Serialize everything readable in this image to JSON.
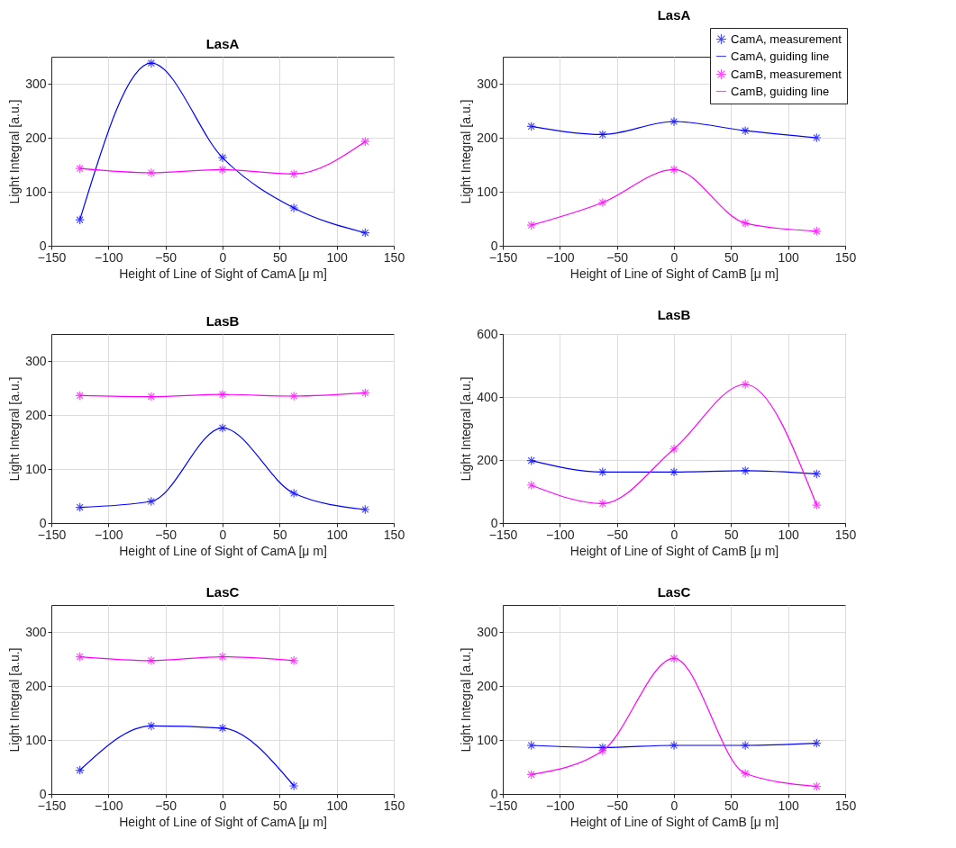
{
  "chart_data": [
    {
      "type": "line",
      "title": "LasA",
      "xlabel": "Height of Line of Sight of CamA [μ m]",
      "ylabel": "Light Integral [a.u.]",
      "x": [
        -125,
        -62.5,
        0,
        62.5,
        125
      ],
      "xlim": [
        -150,
        150
      ],
      "xticks": [
        -150,
        -100,
        -50,
        0,
        50,
        100,
        150
      ],
      "ylim": [
        0,
        350
      ],
      "yticks": [
        0,
        100,
        200,
        300
      ],
      "grid": true,
      "series": [
        {
          "type": "scatter",
          "marker": "cross",
          "color": "#0000ff",
          "values": [
            48,
            338,
            163,
            70,
            24
          ]
        },
        {
          "color": "#0000ff",
          "values": [
            48,
            338,
            163,
            70,
            24
          ]
        },
        {
          "type": "scatter",
          "marker": "cross",
          "color": "#ff00ff",
          "values": [
            143,
            135,
            141,
            133,
            193
          ]
        },
        {
          "color": "#ff00ff",
          "values": [
            143,
            135,
            141,
            133,
            193
          ]
        }
      ]
    },
    {
      "type": "line",
      "title": "LasA",
      "xlabel": "Height of Line of Sight of CamB [μ m]",
      "ylabel": "Light Integral [a.u.]",
      "x": [
        -125,
        -62.5,
        0,
        62.5,
        125
      ],
      "xlim": [
        -150,
        150
      ],
      "xticks": [
        -150,
        -100,
        -50,
        0,
        50,
        100,
        150
      ],
      "ylim": [
        0,
        350
      ],
      "yticks": [
        0,
        100,
        200,
        300
      ],
      "grid": true,
      "legend": "top right",
      "series": [
        {
          "type": "scatter",
          "marker": "cross",
          "name": "CamA, measurement",
          "color": "#0000ff",
          "values": [
            221,
            206,
            230,
            213,
            200
          ]
        },
        {
          "name": "CamA, guiding line",
          "color": "#0000ff",
          "values": [
            221,
            206,
            230,
            213,
            200
          ]
        },
        {
          "type": "scatter",
          "marker": "cross",
          "name": "CamB, measurement",
          "color": "#ff00ff",
          "values": [
            38,
            80,
            141,
            42,
            27
          ]
        },
        {
          "name": "CamB, guiding line",
          "color": "#ff00ff",
          "values": [
            38,
            80,
            141,
            42,
            27
          ]
        }
      ]
    },
    {
      "type": "line",
      "title": "LasB",
      "xlabel": "Height of Line of Sight of CamA [μ m]",
      "ylabel": "Light Integral [a.u.]",
      "x": [
        -125,
        -62.5,
        0,
        62.5,
        125
      ],
      "xlim": [
        -150,
        150
      ],
      "xticks": [
        -150,
        -100,
        -50,
        0,
        50,
        100,
        150
      ],
      "ylim": [
        0,
        350
      ],
      "yticks": [
        0,
        100,
        200,
        300
      ],
      "grid": true,
      "series": [
        {
          "type": "scatter",
          "marker": "cross",
          "color": "#0000ff",
          "values": [
            29,
            40,
            176,
            55,
            25
          ]
        },
        {
          "color": "#0000ff",
          "values": [
            29,
            40,
            176,
            55,
            25
          ]
        },
        {
          "type": "scatter",
          "marker": "cross",
          "color": "#ff00ff",
          "values": [
            236,
            234,
            238,
            235,
            241
          ]
        },
        {
          "color": "#ff00ff",
          "values": [
            236,
            234,
            238,
            235,
            241
          ]
        }
      ]
    },
    {
      "type": "line",
      "title": "LasB",
      "xlabel": "Height of Line of Sight of CamB [μ m]",
      "ylabel": "Light Integral [a.u.]",
      "x": [
        -125,
        -62.5,
        0,
        62.5,
        125
      ],
      "xlim": [
        -150,
        150
      ],
      "xticks": [
        -150,
        -100,
        -50,
        0,
        50,
        100,
        150
      ],
      "ylim": [
        0,
        600
      ],
      "yticks": [
        0,
        200,
        400,
        600
      ],
      "grid": true,
      "series": [
        {
          "type": "scatter",
          "marker": "cross",
          "color": "#0000ff",
          "values": [
            198,
            162,
            162,
            166,
            156
          ]
        },
        {
          "color": "#0000ff",
          "values": [
            198,
            162,
            162,
            166,
            156
          ]
        },
        {
          "type": "scatter",
          "marker": "cross",
          "color": "#ff00ff",
          "values": [
            120,
            62,
            235,
            440,
            57
          ]
        },
        {
          "color": "#ff00ff",
          "values": [
            120,
            62,
            235,
            440,
            57
          ]
        }
      ]
    },
    {
      "type": "line",
      "title": "LasC",
      "xlabel": "Height of Line of Sight of CamA [μ m]",
      "ylabel": "Light Integral [a.u.]",
      "x": [
        -125,
        -62.5,
        0,
        62.5
      ],
      "xlim": [
        -150,
        150
      ],
      "xticks": [
        -150,
        -100,
        -50,
        0,
        50,
        100,
        150
      ],
      "ylim": [
        0,
        350
      ],
      "yticks": [
        0,
        100,
        200,
        300
      ],
      "grid": true,
      "series": [
        {
          "type": "scatter",
          "marker": "cross",
          "color": "#0000ff",
          "values": [
            44,
            126,
            122,
            15
          ]
        },
        {
          "color": "#0000ff",
          "values": [
            44,
            126,
            122,
            15
          ]
        },
        {
          "type": "scatter",
          "marker": "cross",
          "color": "#ff00ff",
          "values": [
            254,
            247,
            254,
            247
          ]
        },
        {
          "color": "#ff00ff",
          "values": [
            254,
            247,
            254,
            247
          ]
        }
      ]
    },
    {
      "type": "line",
      "title": "LasC",
      "xlabel": "Height of Line of Sight of CamB [μ m]",
      "ylabel": "Light Integral [a.u.]",
      "x": [
        -125,
        -62.5,
        0,
        62.5,
        125
      ],
      "xlim": [
        -150,
        150
      ],
      "xticks": [
        -150,
        -100,
        -50,
        0,
        50,
        100,
        150
      ],
      "ylim": [
        0,
        350
      ],
      "yticks": [
        0,
        100,
        200,
        300
      ],
      "grid": true,
      "series": [
        {
          "type": "scatter",
          "marker": "cross",
          "color": "#0000ff",
          "values": [
            90,
            86,
            90,
            90,
            94
          ]
        },
        {
          "color": "#0000ff",
          "values": [
            90,
            86,
            90,
            90,
            94
          ]
        },
        {
          "type": "scatter",
          "marker": "cross",
          "color": "#ff00ff",
          "values": [
            36,
            80,
            251,
            38,
            14
          ]
        },
        {
          "color": "#ff00ff",
          "values": [
            36,
            80,
            251,
            38,
            14
          ]
        }
      ]
    }
  ]
}
